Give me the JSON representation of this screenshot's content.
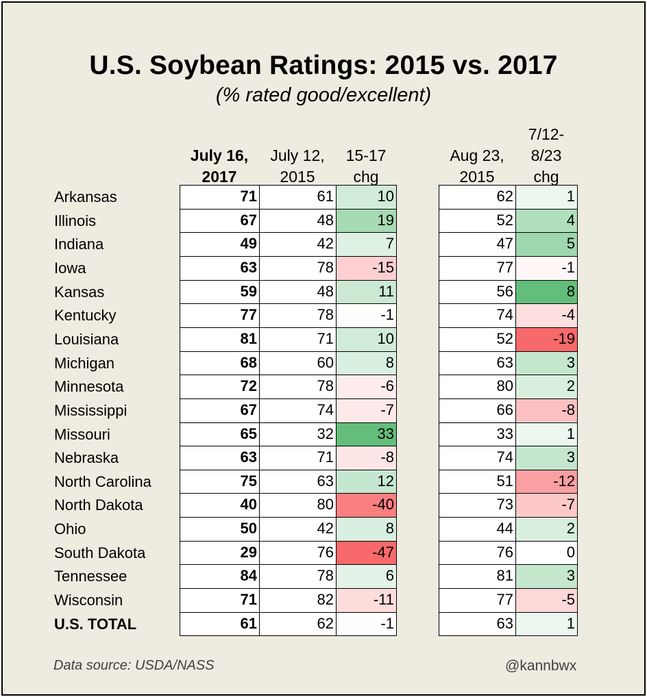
{
  "chart_data": {
    "type": "table",
    "title": "U.S. Soybean Ratings: 2015 vs. 2017",
    "subtitle": "(% rated good/excellent)",
    "columns": [
      {
        "key": "jul2017",
        "label": [
          "July 16,",
          "2017"
        ],
        "bold": true
      },
      {
        "key": "jul2015",
        "label": [
          "July 12,",
          "2015"
        ]
      },
      {
        "key": "chg1517",
        "label": [
          "15-17",
          "chg"
        ]
      },
      {
        "key": "aug2015",
        "label": [
          "Aug 23,",
          "2015"
        ]
      },
      {
        "key": "chg2015",
        "label": [
          "7/12-",
          "8/23",
          "chg"
        ]
      }
    ],
    "rows": [
      {
        "state": "Arkansas",
        "jul2017": 71,
        "jul2015": 61,
        "chg1517": 10,
        "aug2015": 62,
        "chg2015": 1
      },
      {
        "state": "Illinois",
        "jul2017": 67,
        "jul2015": 48,
        "chg1517": 19,
        "aug2015": 52,
        "chg2015": 4
      },
      {
        "state": "Indiana",
        "jul2017": 49,
        "jul2015": 42,
        "chg1517": 7,
        "aug2015": 47,
        "chg2015": 5
      },
      {
        "state": "Iowa",
        "jul2017": 63,
        "jul2015": 78,
        "chg1517": -15,
        "aug2015": 77,
        "chg2015": -1
      },
      {
        "state": "Kansas",
        "jul2017": 59,
        "jul2015": 48,
        "chg1517": 11,
        "aug2015": 56,
        "chg2015": 8
      },
      {
        "state": "Kentucky",
        "jul2017": 77,
        "jul2015": 78,
        "chg1517": -1,
        "aug2015": 74,
        "chg2015": -4
      },
      {
        "state": "Louisiana",
        "jul2017": 81,
        "jul2015": 71,
        "chg1517": 10,
        "aug2015": 52,
        "chg2015": -19
      },
      {
        "state": "Michigan",
        "jul2017": 68,
        "jul2015": 60,
        "chg1517": 8,
        "aug2015": 63,
        "chg2015": 3
      },
      {
        "state": "Minnesota",
        "jul2017": 72,
        "jul2015": 78,
        "chg1517": -6,
        "aug2015": 80,
        "chg2015": 2
      },
      {
        "state": "Mississippi",
        "jul2017": 67,
        "jul2015": 74,
        "chg1517": -7,
        "aug2015": 66,
        "chg2015": -8
      },
      {
        "state": "Missouri",
        "jul2017": 65,
        "jul2015": 32,
        "chg1517": 33,
        "aug2015": 33,
        "chg2015": 1
      },
      {
        "state": "Nebraska",
        "jul2017": 63,
        "jul2015": 71,
        "chg1517": -8,
        "aug2015": 74,
        "chg2015": 3
      },
      {
        "state": "North Carolina",
        "jul2017": 75,
        "jul2015": 63,
        "chg1517": 12,
        "aug2015": 51,
        "chg2015": -12
      },
      {
        "state": "North Dakota",
        "jul2017": 40,
        "jul2015": 80,
        "chg1517": -40,
        "aug2015": 73,
        "chg2015": -7
      },
      {
        "state": "Ohio",
        "jul2017": 50,
        "jul2015": 42,
        "chg1517": 8,
        "aug2015": 44,
        "chg2015": 2
      },
      {
        "state": "South Dakota",
        "jul2017": 29,
        "jul2015": 76,
        "chg1517": -47,
        "aug2015": 76,
        "chg2015": 0
      },
      {
        "state": "Tennessee",
        "jul2017": 84,
        "jul2015": 78,
        "chg1517": 6,
        "aug2015": 81,
        "chg2015": 3
      },
      {
        "state": "Wisconsin",
        "jul2017": 71,
        "jul2015": 82,
        "chg1517": -11,
        "aug2015": 77,
        "chg2015": -5
      },
      {
        "state": "U.S. TOTAL",
        "jul2017": 61,
        "jul2015": 62,
        "chg1517": -1,
        "aug2015": 63,
        "chg2015": 1,
        "total": true
      }
    ]
  },
  "footer": {
    "source": "Data source: USDA/NASS",
    "handle": "@kannbwx"
  },
  "colors": {
    "background": "#eeebe0",
    "positive": "#63be7b",
    "negative": "#f8696b",
    "neutral": "#ffffff"
  }
}
